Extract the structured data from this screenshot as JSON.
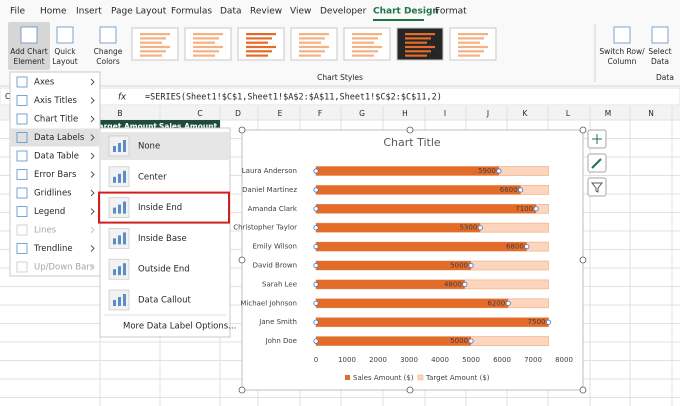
{
  "ribbon": {
    "tabs": [
      "File",
      "Home",
      "Insert",
      "Page Layout",
      "Formulas",
      "Data",
      "Review",
      "View",
      "Developer",
      "Chart Design",
      "Format"
    ],
    "buttons": [
      [
        "Add Chart",
        "Element"
      ],
      [
        "Quick",
        "Layout"
      ],
      [
        "Change",
        "Colors"
      ],
      [
        "Switch Row/",
        "Column"
      ],
      [
        "Select",
        "Data"
      ]
    ],
    "groups": [
      "Chart Styles",
      "Data"
    ]
  },
  "formula_bar": {
    "name_box": "C",
    "fx": "fx",
    "formula": "=SERIES(Sheet1!$C$1,Sheet1!$A$2:$A$11,Sheet1!$C$2:$C$11,2)"
  },
  "columns": [
    "B",
    "C",
    "D",
    "E",
    "F",
    "G",
    "H",
    "I",
    "J",
    "K",
    "L",
    "M",
    "N"
  ],
  "header_cells": [
    "Target Amount",
    "Sales Amount"
  ],
  "menu": {
    "items": [
      "Axes",
      "Axis Titles",
      "Chart Title",
      "Data Labels",
      "Data Table",
      "Error Bars",
      "Gridlines",
      "Legend",
      "Lines",
      "Trendline",
      "Up/Down Bars"
    ]
  },
  "submenu": {
    "items": [
      "None",
      "Center",
      "Inside End",
      "Inside Base",
      "Outside End",
      "Data Callout"
    ],
    "footer": "More Data Label Options..."
  },
  "chart_data": {
    "type": "bar",
    "orientation": "horizontal",
    "title": "Chart Title",
    "categories": [
      "Laura Anderson",
      "Daniel Martinez",
      "Amanda Clark",
      "Christopher Taylor",
      "Emily Wilson",
      "David Brown",
      "Sarah Lee",
      "Michael Johnson",
      "Jane Smith",
      "John Doe"
    ],
    "series": [
      {
        "name": "Sales Amount ($)",
        "color": "#e46c2a",
        "data_labels": true,
        "values": [
          5900,
          6600,
          7100,
          5300,
          6800,
          5000,
          4800,
          6200,
          7500,
          5000
        ]
      },
      {
        "name": "Target Amount ($)",
        "color": "#fbd5bd",
        "data_labels": false,
        "values": [
          7500,
          7500,
          7500,
          7500,
          7500,
          7500,
          7500,
          7500,
          7500,
          7500
        ]
      }
    ],
    "xlim": [
      0,
      8000
    ],
    "xticks": [
      0,
      1000,
      2000,
      3000,
      4000,
      5000,
      6000,
      7000,
      8000
    ],
    "legend": "bottom",
    "grid": false
  }
}
